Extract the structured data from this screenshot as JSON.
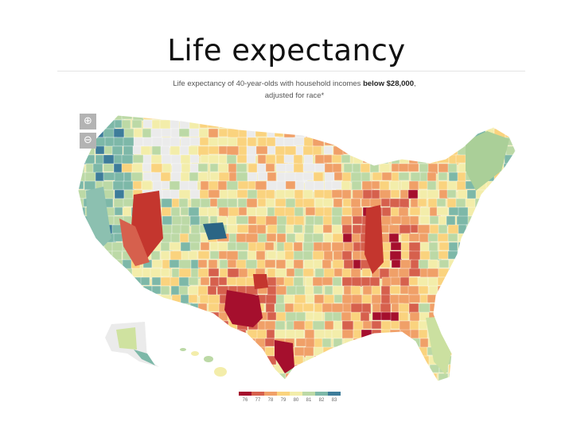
{
  "slide": {
    "title": "Life expectancy"
  },
  "caption": {
    "line1_prefix": "Life expectancy of 40-year-olds with household incomes",
    "line1_bold": "below $28,000",
    "line1_suffix": ",",
    "line2": "adjusted for race*"
  },
  "controls": {
    "zoom_in_icon": "zoom-in-icon",
    "zoom_out_icon": "zoom-out-icon",
    "zoom_in_glyph": "⊕",
    "zoom_out_glyph": "⊖"
  },
  "legend": {
    "items": [
      {
        "label": "76",
        "color": "#a50f2d"
      },
      {
        "label": "77",
        "color": "#d6604d"
      },
      {
        "label": "78",
        "color": "#f0a068"
      },
      {
        "label": "79",
        "color": "#fad37e"
      },
      {
        "label": "80",
        "color": "#f3edaa"
      },
      {
        "label": "81",
        "color": "#bcd9a6"
      },
      {
        "label": "82",
        "color": "#7db8a8"
      },
      {
        "label": "83",
        "color": "#3d7c9a"
      }
    ]
  },
  "map_colors": {
    "no_data": "#ebebeb",
    "ocean_outline": "#cfcfcf"
  }
}
